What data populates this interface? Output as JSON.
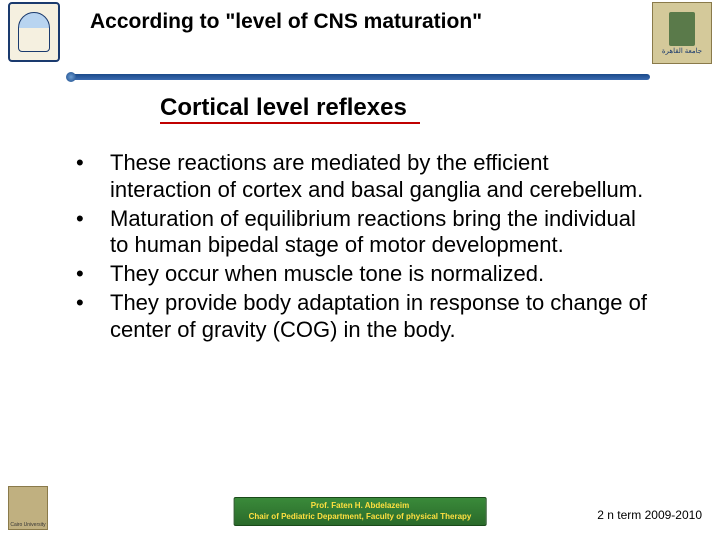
{
  "header": {
    "title": "According to \"level of CNS maturation\"",
    "subtitle": "Cortical level reflexes",
    "logo_right_caption": "جامعة القاهرة"
  },
  "bullets": [
    "These reactions are mediated by the efficient interaction of cortex and basal ganglia and cerebellum.",
    "Maturation of equilibrium reactions bring the individual to human bipedal stage of motor development.",
    "They occur when muscle tone is normalized.",
    "They provide body adaptation in response to change of center of gravity (COG) in the body."
  ],
  "footer": {
    "logo_caption": "Cairo University",
    "center_line1": "Prof. Faten H. Abdelazeim",
    "center_line2": "Chair of Pediatric Department, Faculty of physical Therapy",
    "term": "2 n  term 2009-2010"
  },
  "colors": {
    "subtitle_underline": "#c00000",
    "divider": "#1a4a8a",
    "footer_box_bg": "#2a6a2a",
    "footer_box_text": "#ffe040"
  }
}
